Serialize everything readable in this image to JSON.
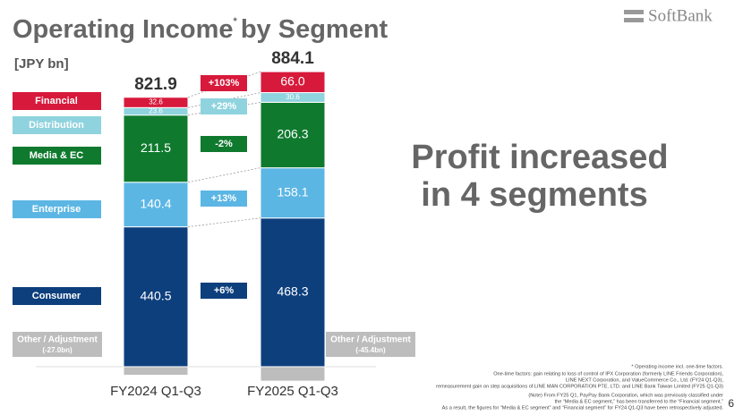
{
  "header": {
    "title": "Operating Income",
    "title_mark": "*",
    "title_end": "by Segment",
    "unit": "[JPY bn]",
    "logo": "SoftBank",
    "page": "6"
  },
  "message": [
    "Profit increased",
    "in 4 segments"
  ],
  "chart_data": {
    "type": "bar",
    "stacked": true,
    "categories": [
      "FY2024 Q1-Q3",
      "FY2025 Q1-Q3"
    ],
    "totals": [
      821.9,
      884.1
    ],
    "series": [
      {
        "name": "Consumer",
        "color": "#0d3f7d",
        "values": [
          440.5,
          468.3
        ],
        "change": "+6%"
      },
      {
        "name": "Enterprise",
        "color": "#5bb6e4",
        "values": [
          140.4,
          158.1
        ],
        "change": "+13%"
      },
      {
        "name": "Media & EC",
        "color": "#0f7a2e",
        "values": [
          211.5,
          206.3
        ],
        "change": "-2%"
      },
      {
        "name": "Distribution",
        "color": "#8fd3de",
        "values": [
          23.6,
          30.6
        ],
        "change": "+29%"
      },
      {
        "name": "Financial",
        "color": "#d7193b",
        "values": [
          32.6,
          66.0
        ],
        "value_labels": [
          "32.6",
          "66.0"
        ],
        "change": "+103%"
      },
      {
        "name": "Other / Adjustment",
        "color": "#bdbdbd",
        "values": [
          -27.0,
          -45.4
        ],
        "value_labels": [
          "(-27.0bn)",
          "(-45.4bn)"
        ]
      }
    ]
  },
  "footnotes": [
    "* Operating income incl. one-time factors.",
    "One-time factors: gain relating to loss of control of IPX Corporation (formerly LINE Friends Corporation),",
    "LINE NEXT Corporation, and ValueCommerce Co., Ltd. (FY24 Q1-Q3),",
    "remeasurement gain on step acquisitions of LINE MAN CORPORATION PTE. LTD. and LINE Bank Taiwan Limited (FY25 Q1-Q3)",
    "(Note) From FY25 Q1, PayPay Bank Corporation, which was previously classified under",
    "the “Media & EC segment,” has been transferred to the “Financial segment.”",
    "As a result, the figures for “Media & EC segment” and “Financial segment” for FY24 Q1-Q3 have been retrospectively adjusted."
  ]
}
